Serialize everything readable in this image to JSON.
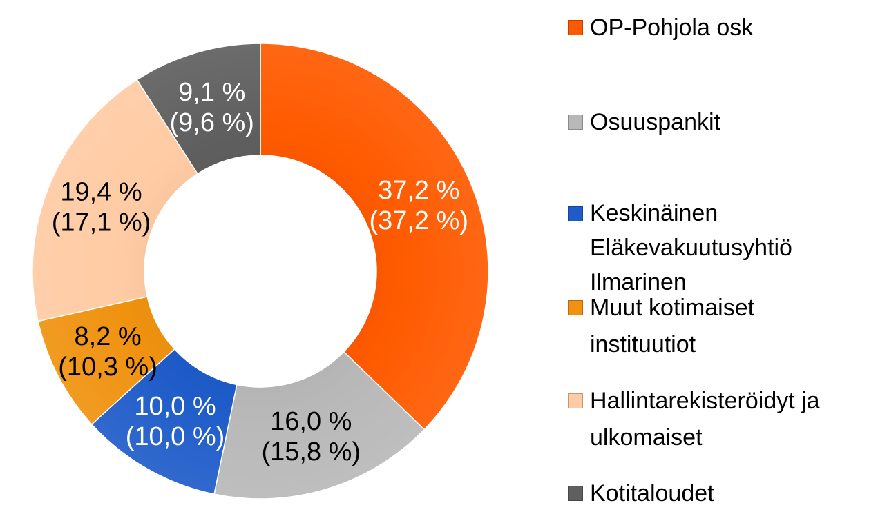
{
  "chart_data": {
    "type": "pie",
    "subtype": "donut",
    "start_angle_deg": 0,
    "direction": "clockwise",
    "series": [
      {
        "name": "OP-Pohjola osk",
        "value": 37.2,
        "label_primary": "37,2 %",
        "label_secondary": "(37,2 %)",
        "color": "#FF5A00",
        "label_color": "#ffffff"
      },
      {
        "name": "Osuuspankit",
        "value": 16.0,
        "label_primary": "16,0 %",
        "label_secondary": "(15,8 %)",
        "color": "#B8B8B8",
        "label_color": "#000000"
      },
      {
        "name": "Keskinäinen Eläkevakuutusyhtiö Ilmarinen",
        "value": 10.0,
        "label_primary": "10,0 %",
        "label_secondary": "(10,0 %)",
        "color": "#1F5CC9",
        "label_color": "#ffffff"
      },
      {
        "name": "Muut kotimaiset instituutiot",
        "value": 8.2,
        "label_primary": "8,2 %",
        "label_secondary": "(10,3 %)",
        "color": "#F0920F",
        "label_color": "#000000"
      },
      {
        "name": "Hallintarekisteröidyt ja ulkomaiset",
        "value": 19.4,
        "label_primary": "19,4 %",
        "label_secondary": "(17,1 %)",
        "color": "#FFCBA4",
        "label_color": "#000000"
      },
      {
        "name": "Kotitaloudet",
        "value": 9.1,
        "label_primary": "9,1 %",
        "label_secondary": "(9,6 %)",
        "color": "#5F5F5F",
        "label_color": "#ffffff"
      }
    ],
    "legend": {
      "position": "right",
      "items": [
        {
          "text": "OP-Pohjola osk",
          "color": "#FF5A00"
        },
        {
          "text": "Osuuspankit",
          "color": "#B8B8B8"
        },
        {
          "text": "Keskinäinen\nEläkevakuutusyhtiö\nIlmarinen",
          "color": "#1F5CC9"
        },
        {
          "text": "Muut kotimaiset\ninstituutiot",
          "color": "#F0920F"
        },
        {
          "text": "Hallintarekisteröidyt ja\nulkomaiset",
          "color": "#FFCBA4"
        },
        {
          "text": "Kotitaloudet",
          "color": "#5F5F5F"
        }
      ]
    }
  }
}
